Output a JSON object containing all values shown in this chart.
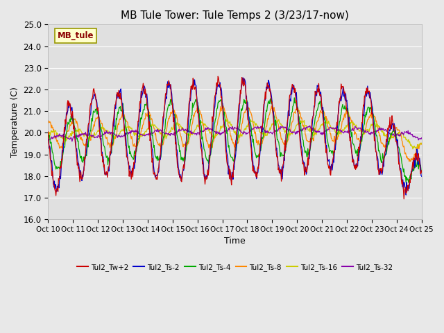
{
  "title": "MB Tule Tower: Tule Temps 2 (3/23/17-now)",
  "xlabel": "Time",
  "ylabel": "Temperature (C)",
  "ylim": [
    16.0,
    25.0
  ],
  "yticks": [
    16.0,
    17.0,
    18.0,
    19.0,
    20.0,
    21.0,
    22.0,
    23.0,
    24.0,
    25.0
  ],
  "xtick_labels": [
    "Oct 10",
    "Oct 11",
    "Oct 12",
    "Oct 13",
    "Oct 14",
    "Oct 15",
    "Oct 16",
    "Oct 17",
    "Oct 18",
    "Oct 19",
    "Oct 20",
    "Oct 21",
    "Oct 22",
    "Oct 23",
    "Oct 24",
    "Oct 25"
  ],
  "fig_bg_color": "#e8e8e8",
  "plot_bg_color": "#e0e0e0",
  "grid_color": "#ffffff",
  "series_colors": [
    "#cc0000",
    "#0000cc",
    "#00aa00",
    "#ff8800",
    "#cccc00",
    "#8800aa"
  ],
  "series_labels": [
    "Tul2_Tw+2",
    "Tul2_Ts-2",
    "Tul2_Ts-4",
    "Tul2_Ts-8",
    "Tul2_Ts-16",
    "Tul2_Ts-32"
  ],
  "legend_label": "MB_tule",
  "legend_label_color": "#8b0000",
  "legend_bg_color": "#ffffcc",
  "legend_border_color": "#999900",
  "lw": 0.9
}
